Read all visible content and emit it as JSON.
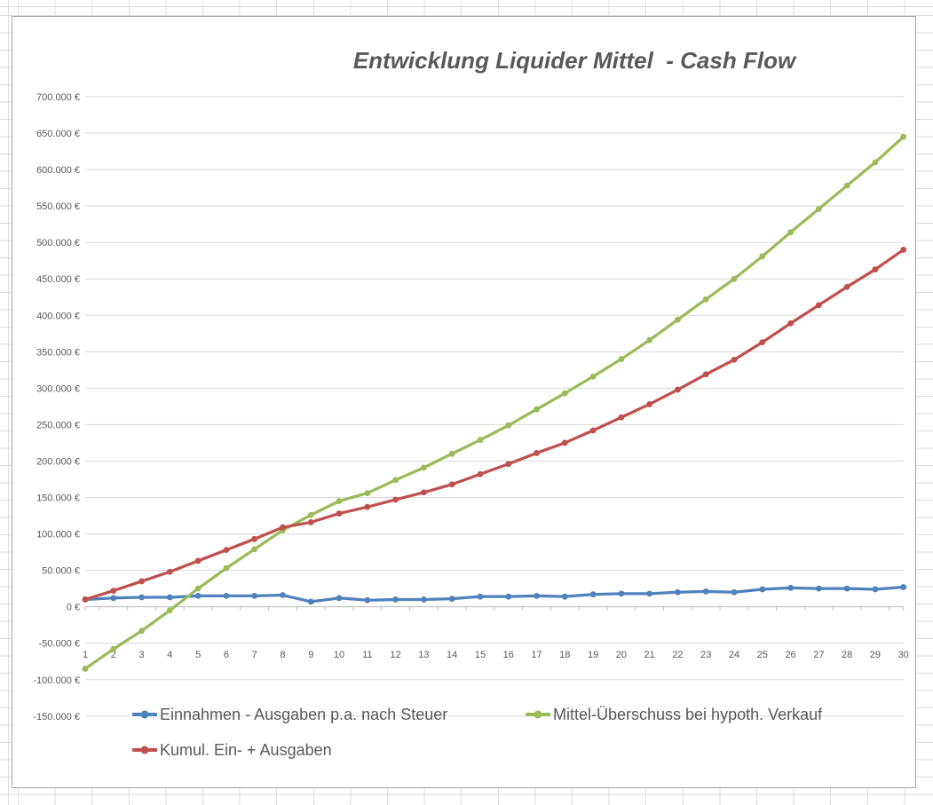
{
  "chart_data": {
    "type": "line",
    "title": "Entwicklung Liquider Mittel  - Cash Flow",
    "categories": [
      "1",
      "2",
      "3",
      "4",
      "5",
      "6",
      "7",
      "8",
      "9",
      "10",
      "11",
      "12",
      "13",
      "14",
      "15",
      "16",
      "17",
      "18",
      "19",
      "20",
      "21",
      "22",
      "23",
      "24",
      "25",
      "26",
      "27",
      "28",
      "29",
      "30"
    ],
    "series": [
      {
        "name": "Einnahmen - Ausgaben p.a. nach Steuer",
        "color": "#4F81BD",
        "values": [
          10000,
          12000,
          13000,
          13000,
          15000,
          15000,
          15000,
          16000,
          7000,
          12000,
          9000,
          10000,
          10000,
          11000,
          14000,
          14000,
          15000,
          14000,
          17000,
          18000,
          18000,
          20000,
          21000,
          20000,
          24000,
          26000,
          25000,
          25000,
          24000,
          27000
        ]
      },
      {
        "name": "Mittel-Überschuss bei hypoth. Verkauf",
        "color": "#9BBB59",
        "values": [
          -85000,
          -58000,
          -33000,
          -5000,
          25000,
          53000,
          79000,
          105000,
          126000,
          145000,
          156000,
          174000,
          191000,
          210000,
          229000,
          249000,
          271000,
          293000,
          316000,
          340000,
          366000,
          394000,
          422000,
          450000,
          481000,
          514000,
          546000,
          578000,
          610000,
          645000
        ]
      },
      {
        "name": "Kumul. Ein- + Ausgaben",
        "color": "#C0504D",
        "values": [
          10000,
          22000,
          35000,
          48000,
          63000,
          78000,
          93000,
          109000,
          116000,
          128000,
          137000,
          147000,
          157000,
          168000,
          182000,
          196000,
          211000,
          225000,
          242000,
          260000,
          278000,
          298000,
          319000,
          339000,
          363000,
          389000,
          414000,
          439000,
          463000,
          490000
        ]
      }
    ],
    "y_axis": {
      "min": -150000,
      "max": 700000,
      "step": 50000,
      "tick_labels": [
        "700.000 €",
        "650.000 €",
        "600.000 €",
        "550.000 €",
        "500.000 €",
        "450.000 €",
        "400.000 €",
        "350.000 €",
        "300.000 €",
        "250.000 €",
        "200.000 €",
        "150.000 €",
        "100.000 €",
        "50.000 €",
        "0 €",
        "-50.000 €",
        "-100.000 €",
        "-150.000 €"
      ]
    },
    "x_axis": {
      "labels": [
        "1",
        "2",
        "3",
        "4",
        "5",
        "6",
        "7",
        "8",
        "9",
        "10",
        "11",
        "12",
        "13",
        "14",
        "15",
        "16",
        "17",
        "18",
        "19",
        "20",
        "21",
        "22",
        "23",
        "24",
        "25",
        "26",
        "27",
        "28",
        "29",
        "30"
      ]
    },
    "legend": {
      "position": "bottom-left"
    },
    "grid": true,
    "styles": {
      "grid_color": "#D9D9D9",
      "axis_color": "#BFBFBF",
      "text_color": "#595959",
      "plot_bg": "#FFFFFF",
      "sheet_gridline_color": "#DCDCDC",
      "chart_border_color": "#A6A6A6"
    }
  }
}
